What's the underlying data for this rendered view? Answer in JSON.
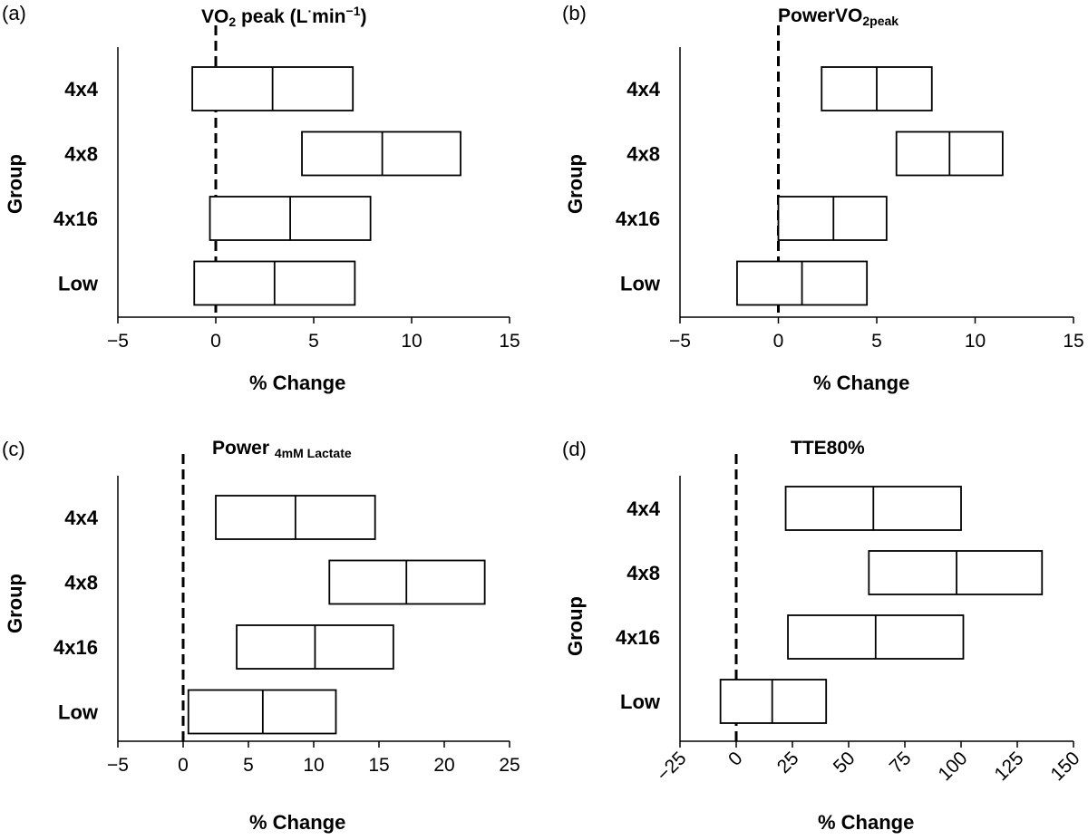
{
  "chart_data": [
    {
      "panel": "(a)",
      "type": "box",
      "title_parts": {
        "main": "VO",
        "sub": "2",
        "after": " peak (L",
        "dot": "·",
        "unit": "min",
        "sup": "−1",
        "close": ")"
      },
      "ylabel": "Group",
      "xlabel": "% Change",
      "categories": [
        "4x4",
        "4x8",
        "4x16",
        "Low"
      ],
      "boxes": [
        {
          "low": -1.2,
          "mid": 2.9,
          "high": 7.0
        },
        {
          "low": 4.4,
          "mid": 8.5,
          "high": 12.5
        },
        {
          "low": -0.3,
          "mid": 3.8,
          "high": 7.9
        },
        {
          "low": -1.1,
          "mid": 3.0,
          "high": 7.1
        }
      ],
      "xlim": [
        -5,
        15
      ],
      "xticks": [
        "-5",
        "0",
        "5",
        "10",
        "15"
      ],
      "xtick_values": [
        -5,
        0,
        5,
        10,
        15
      ],
      "reference_line": 0
    },
    {
      "panel": "(b)",
      "type": "box",
      "title_parts": {
        "main": "PowerVO",
        "sub": "2peak"
      },
      "ylabel": "Group",
      "xlabel": "% Change",
      "categories": [
        "4x4",
        "4x8",
        "4x16",
        "Low"
      ],
      "boxes": [
        {
          "low": 2.2,
          "mid": 5.0,
          "high": 7.8
        },
        {
          "low": 6.0,
          "mid": 8.7,
          "high": 11.4
        },
        {
          "low": 0.0,
          "mid": 2.8,
          "high": 5.5
        },
        {
          "low": -2.1,
          "mid": 1.2,
          "high": 4.5
        }
      ],
      "xlim": [
        -5,
        15
      ],
      "xticks": [
        "-5",
        "0",
        "5",
        "10",
        "15"
      ],
      "xtick_values": [
        -5,
        0,
        5,
        10,
        15
      ],
      "reference_line": 0
    },
    {
      "panel": "(c)",
      "type": "box",
      "title_parts": {
        "main": "Power ",
        "sub": "4mM Lactate"
      },
      "ylabel": "Group",
      "xlabel": "% Change",
      "categories": [
        "4x4",
        "4x8",
        "4x16",
        "Low"
      ],
      "boxes": [
        {
          "low": 2.5,
          "mid": 8.6,
          "high": 14.7
        },
        {
          "low": 11.2,
          "mid": 17.1,
          "high": 23.1
        },
        {
          "low": 4.1,
          "mid": 10.1,
          "high": 16.1
        },
        {
          "low": 0.4,
          "mid": 6.1,
          "high": 11.7
        }
      ],
      "xlim": [
        -5,
        25
      ],
      "xticks": [
        "-5",
        "0",
        "5",
        "10",
        "15",
        "20",
        "25"
      ],
      "xtick_values": [
        -5,
        0,
        5,
        10,
        15,
        20,
        25
      ],
      "reference_line": 0
    },
    {
      "panel": "(d)",
      "type": "box",
      "title_parts": {
        "main": "TTE80%"
      },
      "ylabel": "Group",
      "xlabel": "% Change",
      "categories": [
        "4x4",
        "4x8",
        "4x16",
        "Low"
      ],
      "boxes": [
        {
          "low": 22,
          "mid": 61,
          "high": 100
        },
        {
          "low": 59,
          "mid": 98,
          "high": 136
        },
        {
          "low": 23,
          "mid": 62,
          "high": 101
        },
        {
          "low": -7,
          "mid": 16,
          "high": 40
        }
      ],
      "xlim": [
        -25,
        150
      ],
      "xticks": [
        "-25",
        "0",
        "25",
        "50",
        "75",
        "100",
        "125",
        "150"
      ],
      "xtick_values": [
        -25,
        0,
        25,
        50,
        75,
        100,
        125,
        150
      ],
      "reference_line": 0,
      "rotated_ticks": true
    }
  ]
}
